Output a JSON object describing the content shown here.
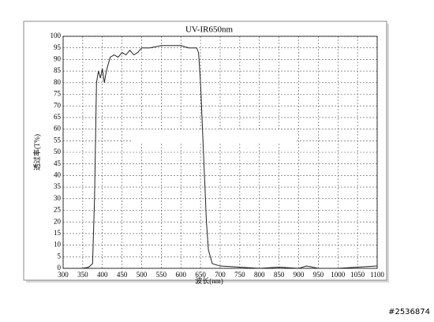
{
  "chart_data": {
    "type": "line",
    "title": "UV-IR650nm",
    "x_label": "波长(nm)",
    "y_label": "透过率(T%)",
    "x": [
      300,
      350,
      365,
      375,
      380,
      385,
      390,
      395,
      400,
      405,
      410,
      415,
      420,
      430,
      440,
      450,
      460,
      470,
      480,
      490,
      500,
      520,
      550,
      600,
      620,
      640,
      645,
      650,
      655,
      660,
      665,
      670,
      680,
      700,
      750,
      800,
      850,
      900,
      920,
      950,
      1000,
      1050,
      1100
    ],
    "values": [
      0,
      0,
      0.5,
      2,
      30,
      80,
      85,
      82,
      86,
      80,
      85,
      88,
      91,
      92,
      91,
      93,
      92,
      94,
      92,
      93,
      95,
      95,
      96,
      96,
      95,
      95,
      93,
      80,
      60,
      40,
      20,
      8,
      2,
      1,
      0.5,
      0,
      0.5,
      0,
      1,
      0,
      0,
      0.5,
      1
    ],
    "color": "#222222",
    "xlim": [
      300,
      1100
    ],
    "xticks": [
      300,
      350,
      400,
      450,
      500,
      550,
      600,
      650,
      700,
      750,
      800,
      850,
      900,
      950,
      1000,
      1050,
      1100
    ],
    "ylim": [
      0,
      100
    ],
    "yticks": [
      0,
      5,
      10,
      15,
      20,
      25,
      30,
      35,
      40,
      45,
      50,
      55,
      60,
      65,
      70,
      75,
      80,
      85,
      90,
      95,
      100
    ],
    "grid": true
  },
  "watermark": "#2536874"
}
